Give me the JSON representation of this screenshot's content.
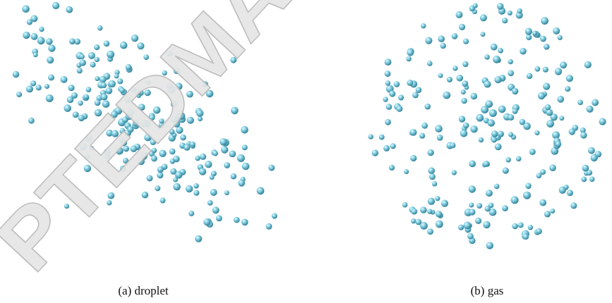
{
  "figure": {
    "panels": [
      {
        "caption": "(a) droplet"
      },
      {
        "caption": "(b) gas"
      }
    ],
    "watermark": "PTEDMA"
  }
}
